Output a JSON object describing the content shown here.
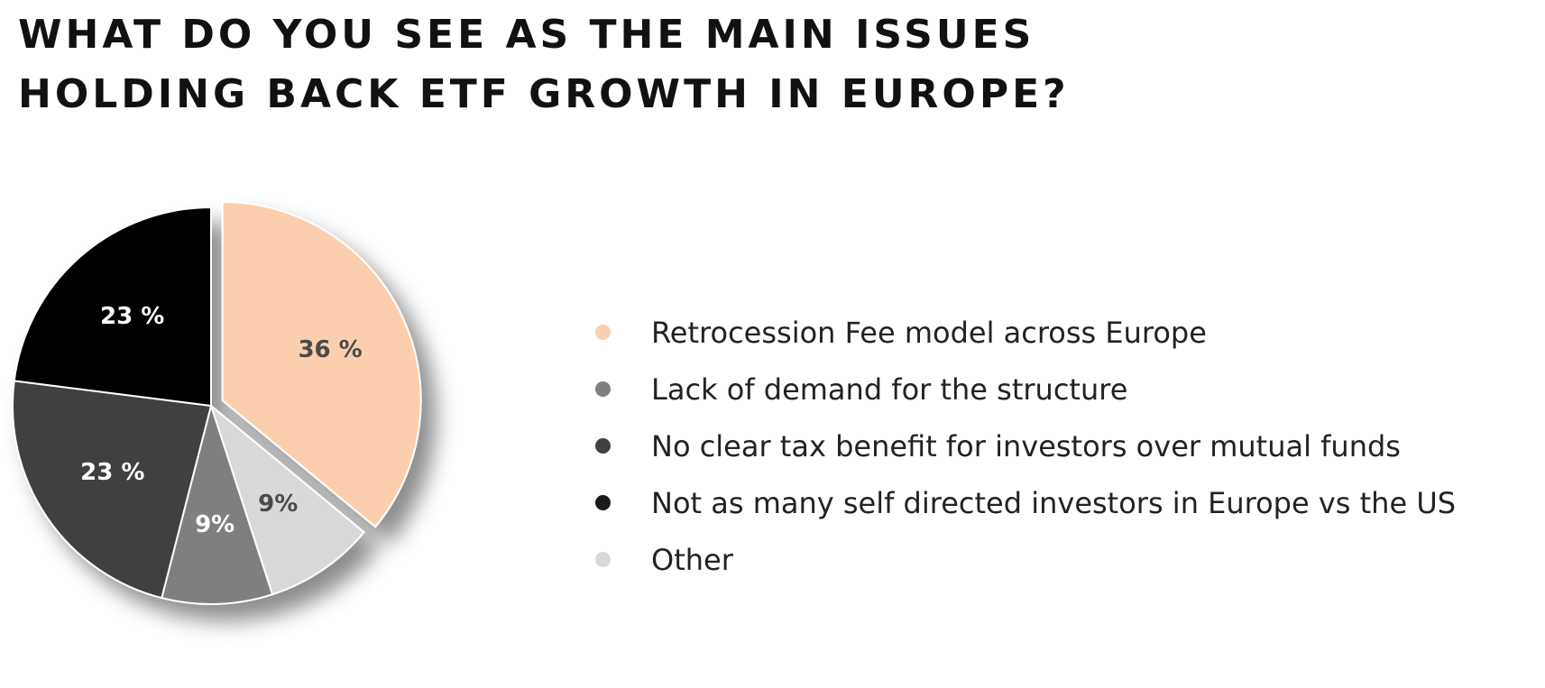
{
  "title_lines": [
    "WHAT DO YOU SEE AS THE MAIN ISSUES",
    "HOLDING BACK ETF GROWTH IN EUROPE?"
  ],
  "chart_data": {
    "type": "pie",
    "title": "WHAT DO YOU SEE AS THE MAIN ISSUES HOLDING BACK ETF GROWTH IN EUROPE?",
    "legend_position": "right",
    "slices": [
      {
        "label": "Retrocession Fee model across Europe",
        "value": 36,
        "display": "36 %",
        "color": "#FBCFAE",
        "text_color": "#4a4a4a",
        "exploded": true
      },
      {
        "label": "Other",
        "value": 9,
        "display": "9%",
        "color": "#D9D9DB",
        "text_color": "#4a4a4a",
        "exploded": false
      },
      {
        "label": "Lack of demand for the structure",
        "value": 9,
        "display": "9%",
        "color": "#7F7F7F",
        "text_color": "#ffffff",
        "exploded": false
      },
      {
        "label": "No clear tax benefit for investors over mutual funds",
        "value": 23,
        "display": "23 %",
        "color": "#404040",
        "text_color": "#ffffff",
        "exploded": false
      },
      {
        "label": "Not as many self directed investors in Europe vs the US",
        "value": 23,
        "display": "23 %",
        "color": "#000000",
        "text_color": "#ffffff",
        "exploded": false
      }
    ]
  },
  "legend": [
    {
      "label": "Retrocession Fee model across Europe",
      "color": "#FBCFAE"
    },
    {
      "label": "Lack of demand for the structure",
      "color": "#7F7F7F"
    },
    {
      "label": "No clear tax benefit for investors over mutual funds",
      "color": "#404040"
    },
    {
      "label": "Not as many self directed investors in Europe vs the US",
      "color": "#1a1a1a"
    },
    {
      "label": "Other",
      "color": "#D9D9DB"
    }
  ]
}
